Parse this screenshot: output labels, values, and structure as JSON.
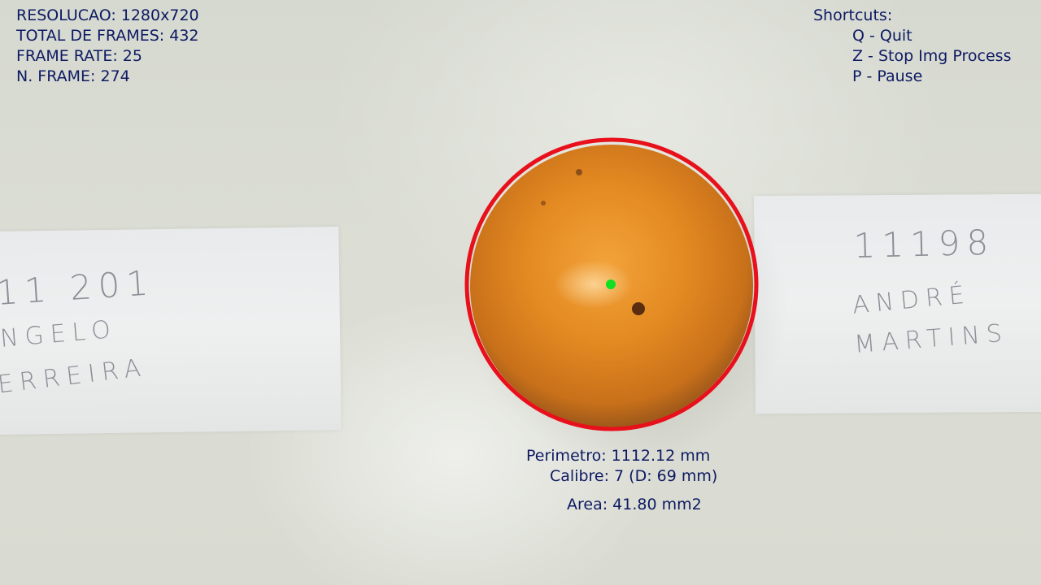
{
  "stats": {
    "resolution": "RESOLUCAO: 1280x720",
    "total_frames": "TOTAL DE FRAMES: 432",
    "frame_rate": "FRAME RATE: 25",
    "frame_number": "N. FRAME: 274"
  },
  "shortcuts": {
    "title": "Shortcuts:",
    "items": [
      "Q - Quit",
      "Z - Stop Img Process",
      "P - Pause"
    ]
  },
  "measurements": {
    "perimeter": "Perimetro: 1112.12 mm",
    "caliber": "Calibre: 7 (D: 69 mm)",
    "area": "Area: 41.80 mm2"
  },
  "labels": {
    "left_card": {
      "line1": "11 201",
      "line2": "NGELO",
      "line3": "ERREIRA"
    },
    "right_card": {
      "line1": "11198",
      "line2": "ANDRÉ",
      "line3": "MARTINS"
    }
  },
  "colors": {
    "detection_circle": "#e8101a",
    "center_marker": "#10e020",
    "overlay_text": "#0d1a62",
    "fruit": "#e08a1e"
  }
}
